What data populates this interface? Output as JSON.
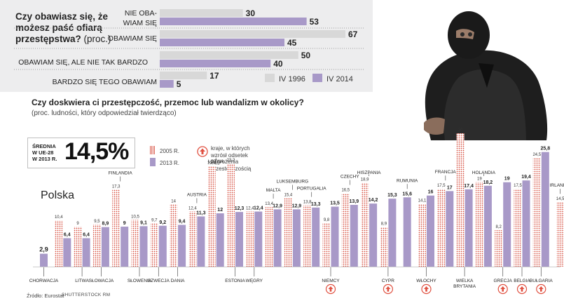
{
  "colors": {
    "bar_1996": "#d8d8d8",
    "bar_2014": "#a899c8",
    "bar_2005_dots": "#d64a3a",
    "bar_2013": "#a899c8",
    "arrow": "#e05040",
    "panel_bg": "#ededee"
  },
  "source": "Źródło: Eurostat",
  "credit": "SHUTTERSTOCK",
  "credit_mark": "RM",
  "chart_data": [
    {
      "type": "bar",
      "orientation": "horizontal",
      "title": "Czy obawiasz się, że możesz paść ofiarą przestępstwa?",
      "unit": "(proc.)",
      "categories": [
        "NIE OBAWIAM SIĘ",
        "OBAWIAM SIĘ",
        "OBAWIAM SIĘ, ALE NIE TAK BARDZO",
        "BARDZO SIĘ TEGO OBAWIAM"
      ],
      "category_lines": [
        [
          "NIE OBA-",
          "WIAM SIĘ"
        ],
        [
          "OBAWIAM SIĘ"
        ],
        [
          "OBAWIAM SIĘ, ALE NIE TAK BARDZO"
        ],
        [
          "BARDZO SIĘ TEGO OBAWIAM"
        ]
      ],
      "series": [
        {
          "name": "IV 1996",
          "values": [
            30,
            67,
            50,
            17
          ]
        },
        {
          "name": "IV 2014",
          "values": [
            53,
            45,
            40,
            5
          ]
        }
      ],
      "xlim": [
        0,
        67
      ]
    },
    {
      "type": "bar",
      "title": "Czy doskwiera ci przestępczość, przemoc lub wandalizm w okolicy?",
      "subtitle": "(proc. ludności, który odpowiedział twierdząco)",
      "average_label": [
        "ŚREDNIA",
        "W UE-28",
        "W 2013 R."
      ],
      "average_value": "14,5%",
      "highlight_label": "Polska",
      "arrow_legend": [
        "kraje, w których",
        "wzrósł odsetek",
        "zagrożenia",
        "przestępczością"
      ],
      "series": [
        {
          "name": "2005 R."
        },
        {
          "name": "2013 R."
        }
      ],
      "countries": [
        {
          "name": "CHORWACJA",
          "v2005": null,
          "v2013": 2.9,
          "arrow": false
        },
        {
          "name": "POLSKA",
          "v2005": 10.4,
          "v2013": 6.4,
          "arrow": false
        },
        {
          "name": "LITWA",
          "v2005": 9,
          "v2013": 6.4,
          "arrow": false
        },
        {
          "name": "SŁOWACJA",
          "v2005": 9.5,
          "v2013": 8.9,
          "arrow": false
        },
        {
          "name": "FINLANDIA",
          "v2005": 17.3,
          "v2013": 9,
          "arrow": false
        },
        {
          "name": "SŁOWENIA",
          "v2005": 10.5,
          "v2013": 9.1,
          "arrow": false
        },
        {
          "name": "SZWECJA",
          "v2005": 9.7,
          "v2013": 9.2,
          "arrow": false
        },
        {
          "name": "DANIA",
          "v2005": 14,
          "v2013": 9.4,
          "arrow": false
        },
        {
          "name": "AUSTRIA",
          "v2005": 12.4,
          "v2013": 11.3,
          "arrow": false
        },
        {
          "name": "ŁOTWA",
          "v2005": 22.6,
          "v2013": 12,
          "arrow": false
        },
        {
          "name": "ESTONIA",
          "v2005": 23.2,
          "v2013": 12.3,
          "arrow": false
        },
        {
          "name": "WĘGRY",
          "v2005": 12.4,
          "v2013": 12.4,
          "arrow": false
        },
        {
          "name": "MALTA",
          "v2005": 13.4,
          "v2013": 12.9,
          "arrow": false
        },
        {
          "name": "LUKSEMBURG",
          "v2005": 15.4,
          "v2013": 12.9,
          "arrow": false
        },
        {
          "name": "PORTUGALIA",
          "v2005": 13.8,
          "v2013": 13.3,
          "arrow": false
        },
        {
          "name": "NIEMCY",
          "v2005": 9.8,
          "v2013": 13.5,
          "arrow": true
        },
        {
          "name": "CZECHY",
          "v2005": 16.5,
          "v2013": 13.9,
          "arrow": false
        },
        {
          "name": "HISZPANIA",
          "v2005": 18.9,
          "v2013": 14.2,
          "arrow": false
        },
        {
          "name": "CYPR",
          "v2005": 8.9,
          "v2013": 15.3,
          "arrow": true
        },
        {
          "name": "RUMUNIA",
          "v2005": null,
          "v2013": 15.6,
          "arrow": false
        },
        {
          "name": "WŁOCHY",
          "v2005": 14.1,
          "v2013": 16,
          "arrow": true
        },
        {
          "name": "FRANCJA",
          "v2005": 17.5,
          "v2013": 17,
          "arrow": false
        },
        {
          "name": "WIELKA BRYTANIA",
          "v2005": 30,
          "v2013": 17.4,
          "arrow": false
        },
        {
          "name": "HOLANDIA",
          "v2005": 19,
          "v2013": 18.2,
          "arrow": false
        },
        {
          "name": "GRECJA",
          "v2005": 8.2,
          "v2013": 19,
          "arrow": true
        },
        {
          "name": "BELGIA",
          "v2005": 17.5,
          "v2013": 19.4,
          "arrow": true
        },
        {
          "name": "BUŁGARIA",
          "v2005": 24.5,
          "v2013": 25.8,
          "arrow": true
        },
        {
          "name": "IRLANDIA",
          "v2005": 14.5,
          "v2013": null,
          "arrow": false
        }
      ],
      "ylim": [
        0,
        30
      ]
    }
  ]
}
